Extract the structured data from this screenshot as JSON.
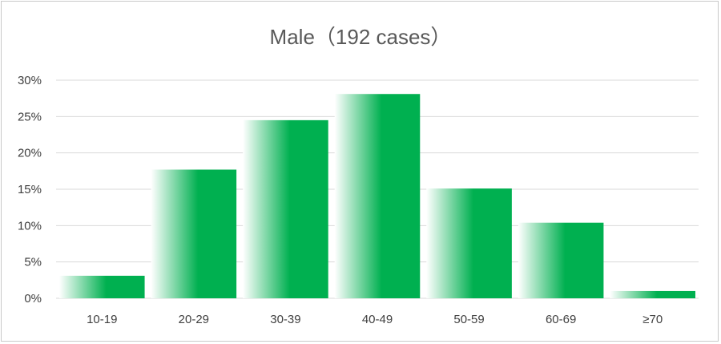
{
  "chart_data": {
    "type": "bar",
    "title": "Male（192 cases）",
    "categories": [
      "10-19",
      "20-29",
      "30-39",
      "40-49",
      "50-59",
      "60-69",
      "≥70"
    ],
    "values": [
      3.1,
      17.7,
      24.5,
      28.1,
      15.1,
      10.4,
      1.0
    ],
    "value_unit": "%",
    "ylim": [
      0,
      30
    ],
    "yticks": [
      "0%",
      "5%",
      "10%",
      "15%",
      "20%",
      "25%",
      "30%"
    ],
    "ytick_values": [
      0,
      5,
      10,
      15,
      20,
      25,
      30
    ],
    "grid": true,
    "legend": "none",
    "bar_color": "#00b050",
    "bar_fill": "gradient-left-white-to-green"
  }
}
